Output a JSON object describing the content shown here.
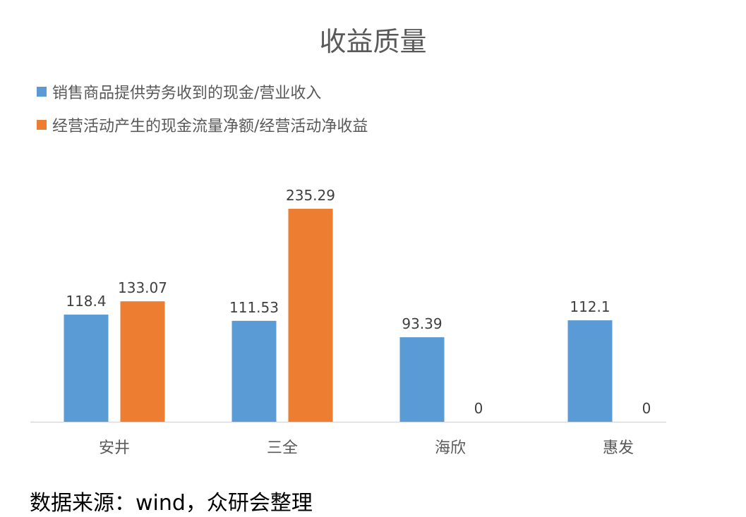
{
  "chart_data": {
    "type": "bar",
    "title": "收益质量",
    "categories": [
      "安井",
      "三全",
      "海欣",
      "惠发"
    ],
    "series": [
      {
        "name": "销售商品提供劳务收到的现金/营业收入",
        "values": [
          118.4,
          111.53,
          93.39,
          112.1
        ],
        "labels": [
          "118.4",
          "111.53",
          "93.39",
          "112.1"
        ],
        "color": "#5B9BD5"
      },
      {
        "name": "经营活动产生的现金流量净额/经营活动净收益",
        "values": [
          133.07,
          235.29,
          0,
          0
        ],
        "labels": [
          "133.07",
          "235.29",
          "0",
          "0"
        ],
        "color": "#ED7D31"
      }
    ],
    "xlabel": "",
    "ylabel": "",
    "grid": false,
    "legend": "top-left"
  },
  "source_note": "数据来源：wind，众研会整理"
}
